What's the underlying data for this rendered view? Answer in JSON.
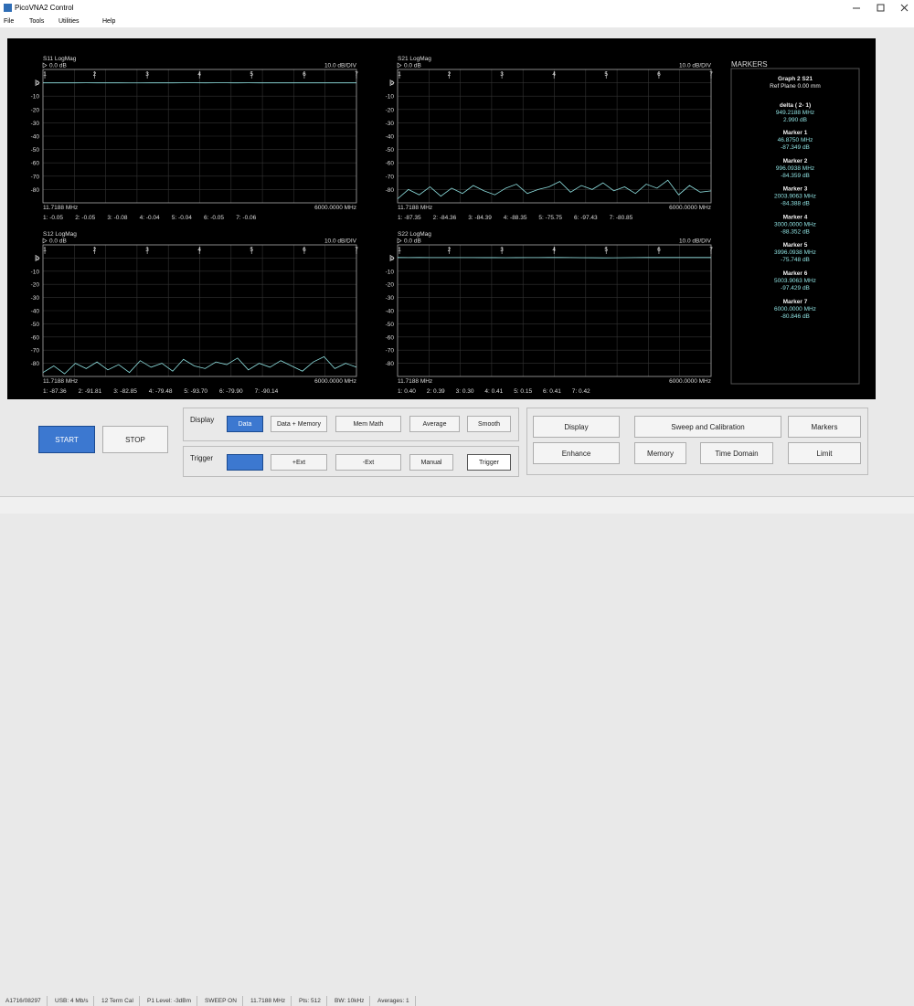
{
  "window": {
    "title": "PicoVNA2 Control",
    "menu": [
      "File",
      "Tools",
      "Utilities",
      "Help"
    ]
  },
  "ylim": [
    -90,
    10
  ],
  "xlim": [
    11.7188,
    6000
  ],
  "trace_freq_mhz": [
    11.7,
    218.2,
    424.7,
    631.2,
    837.7,
    1044.2,
    1250.7,
    1457.2,
    1663.6,
    1870.1,
    2076.6,
    2283.1,
    2489.6,
    2696.1,
    2902.6,
    3109.1,
    3315.6,
    3522.1,
    3728.6,
    3935.1,
    4141.6,
    4348.1,
    4554.5,
    4761.0,
    4967.5,
    5174.0,
    5380.5,
    5587.0,
    5793.5,
    6000.0
  ],
  "graphs": [
    {
      "title": "S11 LogMag",
      "ref": "0.0 dB",
      "scale": "10.0 dB/DIV",
      "yticks": [
        0,
        -10,
        -20,
        -30,
        -40,
        -50,
        -60,
        -70,
        -80
      ],
      "start": "11.7188 MHz",
      "stop": "6000.0000 MHz",
      "readout": [
        "1: -0.05",
        "2: -0.05",
        "3: -0.08",
        "4: -0.04",
        "5: -0.04",
        "6: -0.05",
        "7: -0.06"
      ],
      "trace": [
        -0.05,
        -0.05,
        -0.06,
        -0.05,
        -0.04,
        -0.05,
        -0.06,
        -0.07,
        -0.08,
        -0.08,
        -0.07,
        -0.06,
        -0.05,
        -0.04,
        -0.04,
        -0.05,
        -0.04,
        -0.04,
        -0.05,
        -0.04,
        -0.05,
        -0.05,
        -0.06,
        -0.05,
        -0.05,
        -0.06,
        -0.05,
        -0.06,
        -0.06,
        -0.06
      ]
    },
    {
      "title": "S21 LogMag",
      "ref": "0.0 dB",
      "scale": "10.0 dB/DIV",
      "yticks": [
        0,
        -10,
        -20,
        -30,
        -40,
        -50,
        -60,
        -70,
        -80
      ],
      "start": "11.7188 MHz",
      "stop": "6000.0000 MHz",
      "readout": [
        "1: -87.35",
        "2: -84.36",
        "3: -84.39",
        "4: -88.35",
        "5: -75.75",
        "6: -97.43",
        "7: -80.85"
      ],
      "trace": [
        -87,
        -80,
        -84,
        -78,
        -85,
        -79,
        -83,
        -77,
        -81,
        -84,
        -79,
        -76,
        -83,
        -80,
        -78,
        -74,
        -82,
        -77,
        -80,
        -75,
        -81,
        -78,
        -83,
        -76,
        -79,
        -73,
        -84,
        -77,
        -82,
        -81
      ]
    },
    {
      "title": "S12 LogMag",
      "ref": "0.0 dB",
      "scale": "10.0 dB/DIV",
      "yticks": [
        0,
        -10,
        -20,
        -30,
        -40,
        -50,
        -60,
        -70,
        -80
      ],
      "start": "11.7188 MHz",
      "stop": "6000.0000 MHz",
      "readout": [
        "1: -87.36",
        "2: -91.81",
        "3: -82.85",
        "4: -79.48",
        "5: -93.70",
        "6: -79.90",
        "7: -90.14"
      ],
      "trace": [
        -87,
        -82,
        -88,
        -80,
        -84,
        -79,
        -85,
        -81,
        -87,
        -78,
        -83,
        -80,
        -86,
        -77,
        -82,
        -84,
        -79,
        -81,
        -76,
        -85,
        -80,
        -83,
        -78,
        -82,
        -86,
        -79,
        -75,
        -84,
        -80,
        -83
      ]
    },
    {
      "title": "S22 LogMag",
      "ref": "0.0 dB",
      "scale": "10.0 dB/DIV",
      "yticks": [
        0,
        -10,
        -20,
        -30,
        -40,
        -50,
        -60,
        -70,
        -80
      ],
      "start": "11.7188 MHz",
      "stop": "6000.0000 MHz",
      "readout": [
        "1: 0.40",
        "2: 0.39",
        "3: 0.30",
        "4: 0.41",
        "5: 0.15",
        "6: 0.41",
        "7: 0.42"
      ],
      "trace": [
        0.4,
        0.39,
        0.4,
        0.38,
        0.39,
        0.37,
        0.36,
        0.35,
        0.33,
        0.31,
        0.3,
        0.32,
        0.35,
        0.38,
        0.41,
        0.4,
        0.36,
        0.3,
        0.22,
        0.15,
        0.2,
        0.28,
        0.35,
        0.4,
        0.41,
        0.41,
        0.4,
        0.41,
        0.42,
        0.42
      ]
    }
  ],
  "markers_panel": {
    "heading": "MARKERS",
    "graph": "Graph 2 S21",
    "ref_plane": "Ref Plane 0.00 mm",
    "delta": "delta ( 2- 1)",
    "delta_freq": "949.2188 MHz",
    "delta_level": "2.990 dB",
    "markers": [
      {
        "id": "1",
        "name": "Marker  1",
        "freq": {
          "value": 46.875,
          "label": "46.8750 MHz"
        },
        "level": "-87.349 dB"
      },
      {
        "id": "2",
        "name": "Marker  2",
        "freq": {
          "value": 996.0938,
          "label": "996.0938 MHz"
        },
        "level": "-84.359 dB"
      },
      {
        "id": "3",
        "name": "Marker  3",
        "freq": {
          "value": 2003.9063,
          "label": "2003.9063 MHz"
        },
        "level": "-84.388 dB"
      },
      {
        "id": "4",
        "name": "Marker  4",
        "freq": {
          "value": 3000,
          "label": "3000.0000 MHz"
        },
        "level": "-88.352 dB"
      },
      {
        "id": "5",
        "name": "Marker  5",
        "freq": {
          "value": 3996.0938,
          "label": "3996.0938 MHz"
        },
        "level": "-75.748 dB"
      },
      {
        "id": "6",
        "name": "Marker  6",
        "freq": {
          "value": 5003.9063,
          "label": "5003.9063 MHz"
        },
        "level": "-97.429 dB"
      },
      {
        "id": "7",
        "name": "Marker  7",
        "freq": {
          "value": 6000,
          "label": "6000.0000 MHz"
        },
        "level": "-80.846 dB"
      }
    ]
  },
  "controls": {
    "start": "START",
    "stop": "STOP",
    "display_label": "Display",
    "display_buttons": [
      "Data",
      "Data + Memory",
      "Mem Math",
      "Average",
      "Smooth"
    ],
    "trigger_label": "Trigger",
    "trigger_buttons": [
      "+Ext",
      "-Ext",
      "Manual",
      "Trigger"
    ],
    "right_buttons": [
      "Display",
      "Sweep and Calibration",
      "Markers",
      "Enhance",
      "Memory",
      "Time Domain",
      "Limit"
    ]
  },
  "status_bar": [
    "A1716/08297",
    "USB: 4 Mb/s",
    "12 Term Cal",
    "P1 Level: -3dBm",
    "SWEEP ON",
    "11.7188 MHz",
    "Pts: 512",
    "BW: 10kHz",
    "Averages: 1"
  ]
}
